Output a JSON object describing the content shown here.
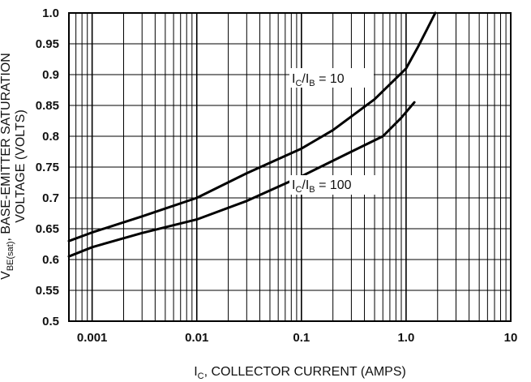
{
  "chart_data": {
    "type": "line",
    "x_scale": "log",
    "xlim": [
      0.0006,
      10
    ],
    "ylim": [
      0.5,
      1.0
    ],
    "grid": true,
    "x_major_ticks": [
      0.001,
      0.01,
      0.1,
      1.0,
      10
    ],
    "x_tick_labels": [
      "0.001",
      "0.01",
      "0.1",
      "1.0",
      "10"
    ],
    "y_ticks": [
      0.5,
      0.55,
      0.6,
      0.65,
      0.7,
      0.75,
      0.8,
      0.85,
      0.9,
      0.95,
      1.0
    ],
    "y_tick_labels": [
      "0.5",
      "0.55",
      "0.6",
      "0.65",
      "0.7",
      "0.75",
      "0.8",
      "0.85",
      "0.9",
      "0.95",
      "1.0"
    ],
    "xlabel": {
      "main": "I",
      "sub": "C",
      "rest": ", COLLECTOR CURRENT (AMPS)"
    },
    "ylabel": {
      "line1_main": "V",
      "line1_sub": "BE(sat)",
      "line1_rest": ", BASE-EMITTER SATURATION",
      "line2": "VOLTAGE (VOLTS)"
    },
    "series": [
      {
        "name": "IC/IB = 10",
        "label_parts": {
          "a": "I",
          "a_sub": "C",
          "b": "/I",
          "b_sub": "B",
          "c": " = 10"
        },
        "x": [
          0.0006,
          0.001,
          0.003,
          0.01,
          0.03,
          0.1,
          0.2,
          0.5,
          1.0,
          1.3,
          1.6,
          1.9
        ],
        "y": [
          0.63,
          0.644,
          0.67,
          0.7,
          0.74,
          0.78,
          0.81,
          0.86,
          0.91,
          0.945,
          0.975,
          1.0
        ]
      },
      {
        "name": "IC/IB = 100",
        "label_parts": {
          "a": "I",
          "a_sub": "C",
          "b": "/I",
          "b_sub": "B",
          "c": " = 100"
        },
        "x": [
          0.0006,
          0.001,
          0.003,
          0.01,
          0.03,
          0.1,
          0.3,
          0.6,
          0.9,
          1.2
        ],
        "y": [
          0.605,
          0.62,
          0.643,
          0.665,
          0.695,
          0.735,
          0.775,
          0.8,
          0.83,
          0.855
        ]
      }
    ]
  }
}
